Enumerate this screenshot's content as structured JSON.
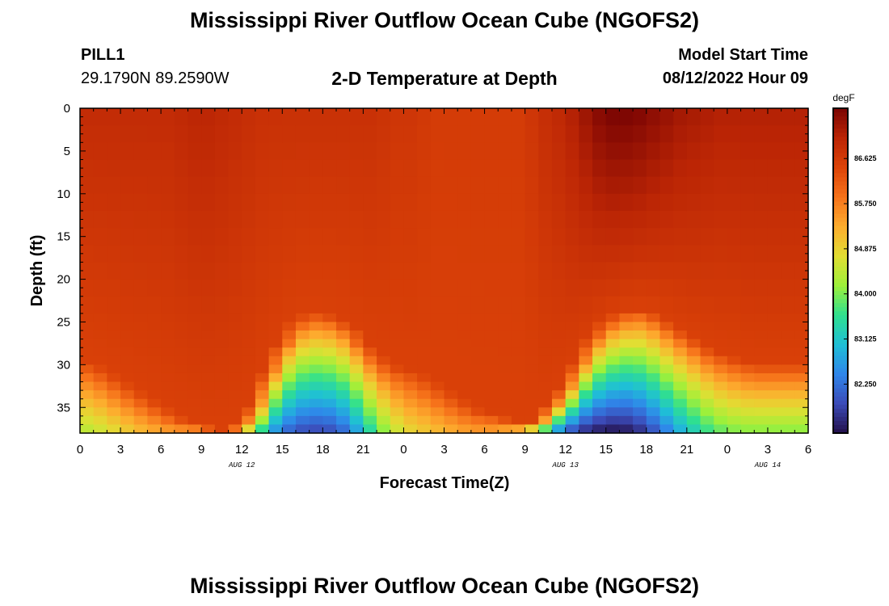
{
  "header": {
    "title": "Mississippi River Outflow Ocean Cube (NGOFS2)",
    "station": "PILL1",
    "coords": "29.1790N  89.2590W",
    "plot_title": "2-D Temperature at Depth",
    "model_start_label": "Model Start Time",
    "model_start_value": "08/12/2022 Hour 09"
  },
  "footer": {
    "title": "Mississippi River Outflow Ocean Cube (NGOFS2)"
  },
  "colors": {
    "colormap": [
      "#23104a",
      "#3c4bb8",
      "#2f86ea",
      "#1fbfd6",
      "#30e08e",
      "#9ef03a",
      "#e2de33",
      "#fdac2e",
      "#f6721a",
      "#dc4308",
      "#bb2505",
      "#7a0403"
    ]
  },
  "chart_data": {
    "type": "heatmap",
    "title": "2-D Temperature at Depth",
    "xlabel": "Forecast Time(Z)",
    "ylabel": "Depth (ft)",
    "x_ticks": [
      "0",
      "3",
      "6",
      "9",
      "12",
      "15",
      "18",
      "21",
      "0",
      "3",
      "6",
      "9",
      "12",
      "15",
      "18",
      "21",
      "0",
      "3",
      "6"
    ],
    "x_range_hours": [
      0,
      54
    ],
    "date_labels": [
      {
        "label": "AUG 12",
        "hour": 12
      },
      {
        "label": "AUG 13",
        "hour": 36
      },
      {
        "label": "AUG 14",
        "hour": 51
      }
    ],
    "y_ticks": [
      "0",
      "5",
      "10",
      "15",
      "20",
      "25",
      "30",
      "35"
    ],
    "ylim": [
      0,
      38
    ],
    "y_inverted": true,
    "colorbar": {
      "unit": "degF",
      "range": [
        81.3,
        87.6
      ],
      "ticks": [
        "86.625",
        "85.750",
        "84.875",
        "84.000",
        "83.125",
        "82.250"
      ]
    },
    "grid_step_hours": 1,
    "depth_levels_ft": [
      0,
      2,
      4,
      6,
      8,
      10,
      12,
      14,
      16,
      18,
      20,
      22,
      24,
      25,
      26,
      27,
      28,
      29,
      30,
      31,
      32,
      33,
      34,
      35,
      36,
      37,
      38
    ],
    "time_hours": [
      0,
      1,
      2,
      3,
      4,
      5,
      6,
      7,
      8,
      9,
      10,
      11,
      12,
      13,
      14,
      15,
      16,
      17,
      18,
      19,
      20,
      21,
      22,
      23,
      24,
      25,
      26,
      27,
      28,
      29,
      30,
      31,
      32,
      33,
      34,
      35,
      36,
      37,
      38,
      39,
      40,
      41,
      42,
      43,
      44,
      45,
      46,
      47,
      48,
      49,
      50,
      51,
      52,
      53,
      54
    ],
    "surface_temperature_degF": [
      86.9,
      86.9,
      86.9,
      86.9,
      86.9,
      86.9,
      86.9,
      86.9,
      87.0,
      87.0,
      87.0,
      86.9,
      86.9,
      86.8,
      86.8,
      86.8,
      86.8,
      86.8,
      86.8,
      86.8,
      86.8,
      86.8,
      86.8,
      86.7,
      86.7,
      86.7,
      86.6,
      86.6,
      86.6,
      86.6,
      86.6,
      86.6,
      86.6,
      86.6,
      86.8,
      86.9,
      87.0,
      87.2,
      87.4,
      87.6,
      87.6,
      87.6,
      87.5,
      87.4,
      87.3,
      87.2,
      87.2,
      87.1,
      87.1,
      87.1,
      87.1,
      87.1,
      87.1,
      87.1,
      87.1
    ],
    "mixed_layer_depth_ft": [
      29.5,
      30.0,
      31.0,
      32.0,
      33.0,
      34.0,
      35.0,
      36.0,
      36.5,
      37.0,
      37.5,
      37.5,
      37.0,
      35.0,
      31.0,
      27.5,
      25.0,
      24.0,
      24.0,
      24.5,
      25.5,
      27.5,
      29.0,
      30.0,
      30.5,
      31.0,
      32.0,
      33.0,
      34.0,
      35.0,
      35.5,
      36.0,
      36.5,
      37.0,
      36.5,
      35.0,
      33.0,
      30.0,
      27.0,
      25.0,
      24.0,
      23.5,
      23.5,
      24.5,
      25.5,
      26.5,
      27.5,
      28.5,
      29.0,
      29.5,
      30.0,
      30.0,
      30.0,
      30.0,
      30.0
    ],
    "bottom_temperature_degF": [
      84.3,
      84.4,
      84.6,
      84.8,
      85.0,
      85.2,
      85.3,
      85.4,
      85.4,
      85.4,
      85.2,
      85.0,
      84.6,
      83.8,
      82.8,
      82.2,
      81.9,
      81.8,
      81.8,
      81.9,
      82.3,
      83.0,
      83.7,
      84.3,
      84.7,
      84.9,
      85.0,
      85.2,
      85.3,
      85.4,
      85.4,
      85.3,
      85.0,
      84.5,
      83.7,
      82.7,
      82.0,
      81.6,
      81.4,
      81.3,
      81.3,
      81.4,
      81.7,
      82.1,
      82.6,
      83.0,
      83.4,
      83.7,
      83.9,
      84.0,
      84.0,
      84.0,
      84.0,
      84.0,
      84.0
    ]
  }
}
